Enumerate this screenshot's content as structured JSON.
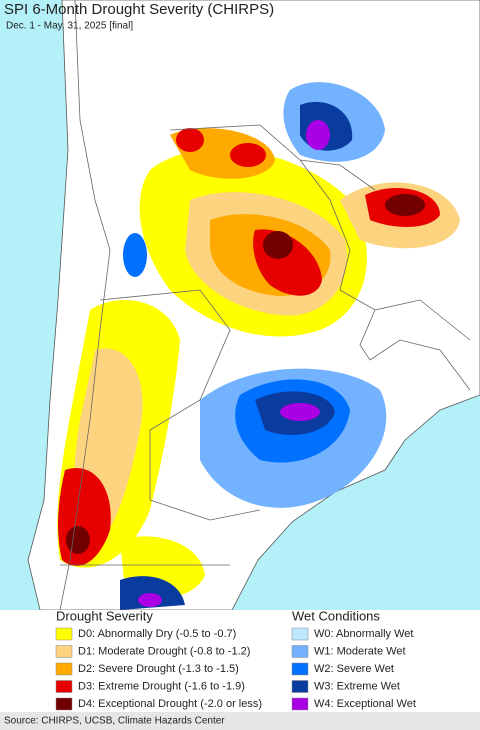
{
  "header": {
    "title": "SPI 6-Month Drought Severity (CHIRPS)",
    "subtitle": "Dec. 1 - May. 31, 2025 [final]"
  },
  "legend": {
    "drought": {
      "title": "Drought Severity",
      "items": [
        {
          "label": "D0: Abnormally Dry (-0.5 to -0.7)",
          "color": "#ffff00"
        },
        {
          "label": "D1: Moderate Drought (-0.8 to -1.2)",
          "color": "#fcd37f"
        },
        {
          "label": "D2: Severe Drought (-1.3 to -1.5)",
          "color": "#ffaa00"
        },
        {
          "label": "D3: Extreme Drought (-1.6 to -1.9)",
          "color": "#e60000"
        },
        {
          "label": "D4: Exceptional Drought (-2.0 or less)",
          "color": "#730000"
        }
      ]
    },
    "wet": {
      "title": "Wet Conditions",
      "items": [
        {
          "label": "W0: Abnormally Wet",
          "color": "#bee8ff"
        },
        {
          "label": "W1: Moderate Wet",
          "color": "#73b2ff"
        },
        {
          "label": "W2: Severe Wet",
          "color": "#0070ff"
        },
        {
          "label": "W3: Extreme Wet",
          "color": "#0a3ca0"
        },
        {
          "label": "W4: Exceptional Wet",
          "color": "#aa00e6"
        }
      ]
    }
  },
  "footer": {
    "source": "Source: CHIRPS, UCSB, Climate Hazards Center"
  }
}
